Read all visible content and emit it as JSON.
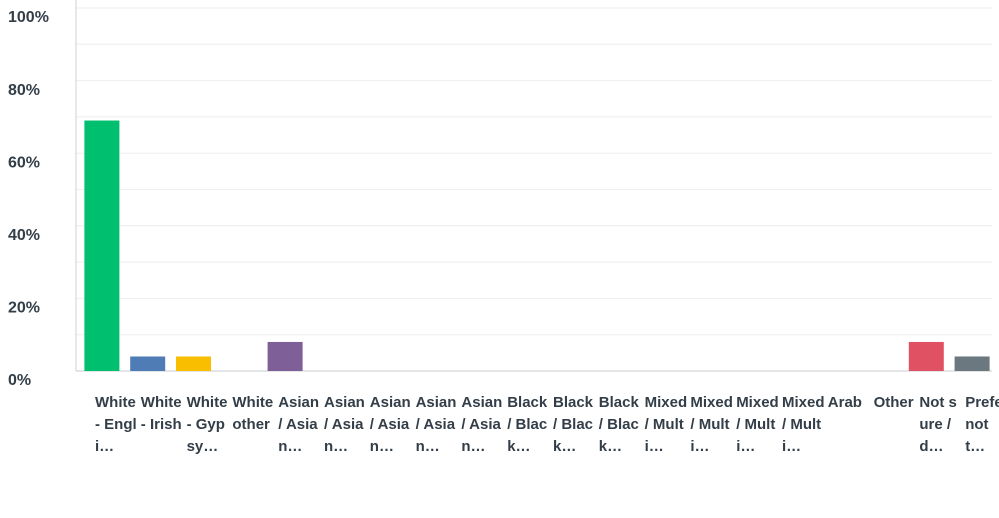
{
  "chart_data": {
    "type": "bar",
    "categories": [
      "White - Engli…",
      "White - Irish",
      "White - Gypsy…",
      "White other",
      "Asian / Asian…",
      "Asian / Asian…",
      "Asian / Asian…",
      "Asian / Asian…",
      "Asian / Asian…",
      "Black / Black…",
      "Black / Black…",
      "Black / Black…",
      "Mixed / Multi…",
      "Mixed / Multi…",
      "Mixed / Multi…",
      "Mixed / Multi…",
      "Arab",
      "Other",
      "Not sure / d…",
      "Prefer not t…"
    ],
    "values": [
      69,
      4,
      4,
      0,
      8,
      0,
      0,
      0,
      0,
      0,
      0,
      0,
      0,
      0,
      0,
      0,
      0,
      0,
      8,
      4
    ],
    "colors": [
      "#00bf6f",
      "#507cb6",
      "#f9be00",
      null,
      "#7f5f98",
      null,
      null,
      null,
      null,
      null,
      null,
      null,
      null,
      null,
      null,
      null,
      null,
      null,
      "#e05263",
      "#6b787f"
    ],
    "ylim": [
      0,
      100
    ],
    "yticks": [
      {
        "value": 0,
        "label": "0%"
      },
      {
        "value": 20,
        "label": "20%"
      },
      {
        "value": 40,
        "label": "40%"
      },
      {
        "value": 60,
        "label": "60%"
      },
      {
        "value": 80,
        "label": "80%"
      },
      {
        "value": 100,
        "label": "100%"
      }
    ],
    "grid": true
  }
}
